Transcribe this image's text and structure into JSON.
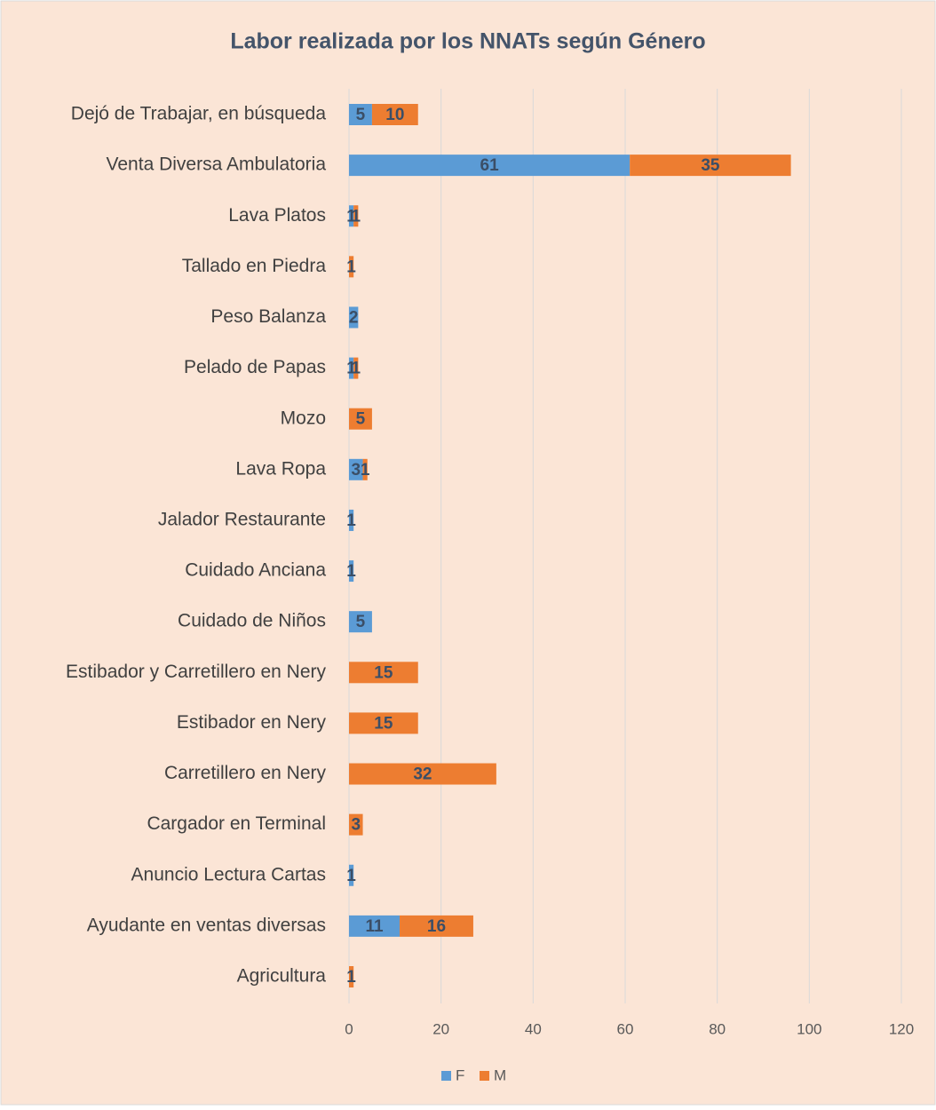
{
  "chart_data": {
    "type": "stacked_barh",
    "title": "Labor realizada por los NNATs según Género",
    "categories": [
      "Dejó de Trabajar, en búsqueda",
      "Venta Diversa Ambulatoria",
      "Lava Platos",
      "Tallado en Piedra",
      "Peso Balanza",
      "Pelado de Papas",
      "Mozo",
      "Lava Ropa",
      "Jalador Restaurante",
      "Cuidado Anciana",
      "Cuidado de Niños",
      "Estibador y Carretillero en Nery",
      "Estibador en Nery",
      "Carretillero en Nery",
      "Cargador  en Terminal",
      "Anuncio Lectura Cartas",
      "Ayudante en ventas diversas",
      "Agricultura"
    ],
    "series": [
      {
        "name": "F",
        "color": "#5b9bd5",
        "values": [
          5,
          61,
          1,
          null,
          2,
          1,
          null,
          3,
          1,
          1,
          5,
          null,
          null,
          null,
          null,
          1,
          11,
          null
        ]
      },
      {
        "name": "M",
        "color": "#ed7d31",
        "values": [
          10,
          35,
          1,
          1,
          null,
          1,
          5,
          1,
          null,
          null,
          null,
          15,
          15,
          32,
          3,
          null,
          16,
          1
        ]
      }
    ],
    "xlim": [
      0,
      120
    ],
    "xticks": [
      0,
      20,
      40,
      60,
      80,
      100,
      120
    ],
    "grid": true,
    "legend": "bottom"
  }
}
